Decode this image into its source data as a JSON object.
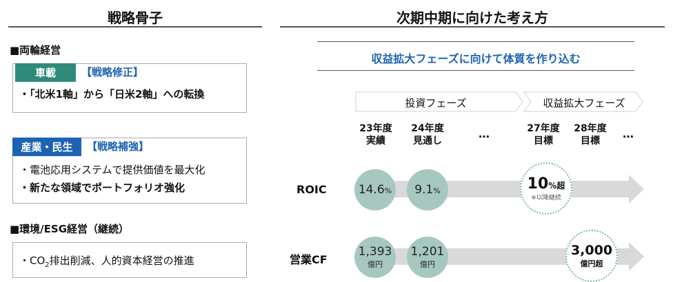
{
  "left": {
    "header": "戦略骨子",
    "section1": "■両輪経営",
    "auto": {
      "badge": "車載",
      "bracket": "【戦略修正】",
      "line1": "・「北米1軸」から「日米2軸」への転換"
    },
    "industry": {
      "badge": "産業・民生",
      "bracket": "【戦略補強】",
      "line1": "・電池応用システムで提供価値を最大化",
      "line2": "・新たな領域でポートフォリオ強化"
    },
    "section2": "■環境/ESG経営（継続）",
    "esg": {
      "prefix": "・CO",
      "sub": "2",
      "suffix": "排出削減、人的資本経営の推進"
    }
  },
  "right": {
    "header": "次期中期に向けた考え方",
    "subtitle": "収益拡大フェーズに向けて体質を作り込む",
    "phase_invest": "投資フェーズ",
    "phase_profit": "収益拡大フェーズ",
    "columns": [
      {
        "l1": "23年度",
        "l2": "実績"
      },
      {
        "l1": "24年度",
        "l2": "見通し"
      },
      {
        "l1": "…",
        "l2": ""
      },
      {
        "l1": "27年度",
        "l2": "目標"
      },
      {
        "l1": "28年度",
        "l2": "目標"
      },
      {
        "l1": "…",
        "l2": ""
      }
    ],
    "roic": {
      "label": "ROIC",
      "v23": "14.6",
      "v23_unit": "%",
      "v24": "9.1",
      "v24_unit": "%",
      "target": "10",
      "target_unit": "%超",
      "target_note": "※以降継続"
    },
    "cf": {
      "label": "営業CF",
      "v23": "1,393",
      "v23_unit": "億円",
      "v24": "1,201",
      "v24_unit": "億円",
      "target": "3,000",
      "target_unit": "億円超"
    },
    "colors": {
      "blue": "#1d63b3",
      "teal": "#2f8a7c",
      "circle": "#a6c8c0",
      "arrow": "#d9d9d9"
    }
  }
}
